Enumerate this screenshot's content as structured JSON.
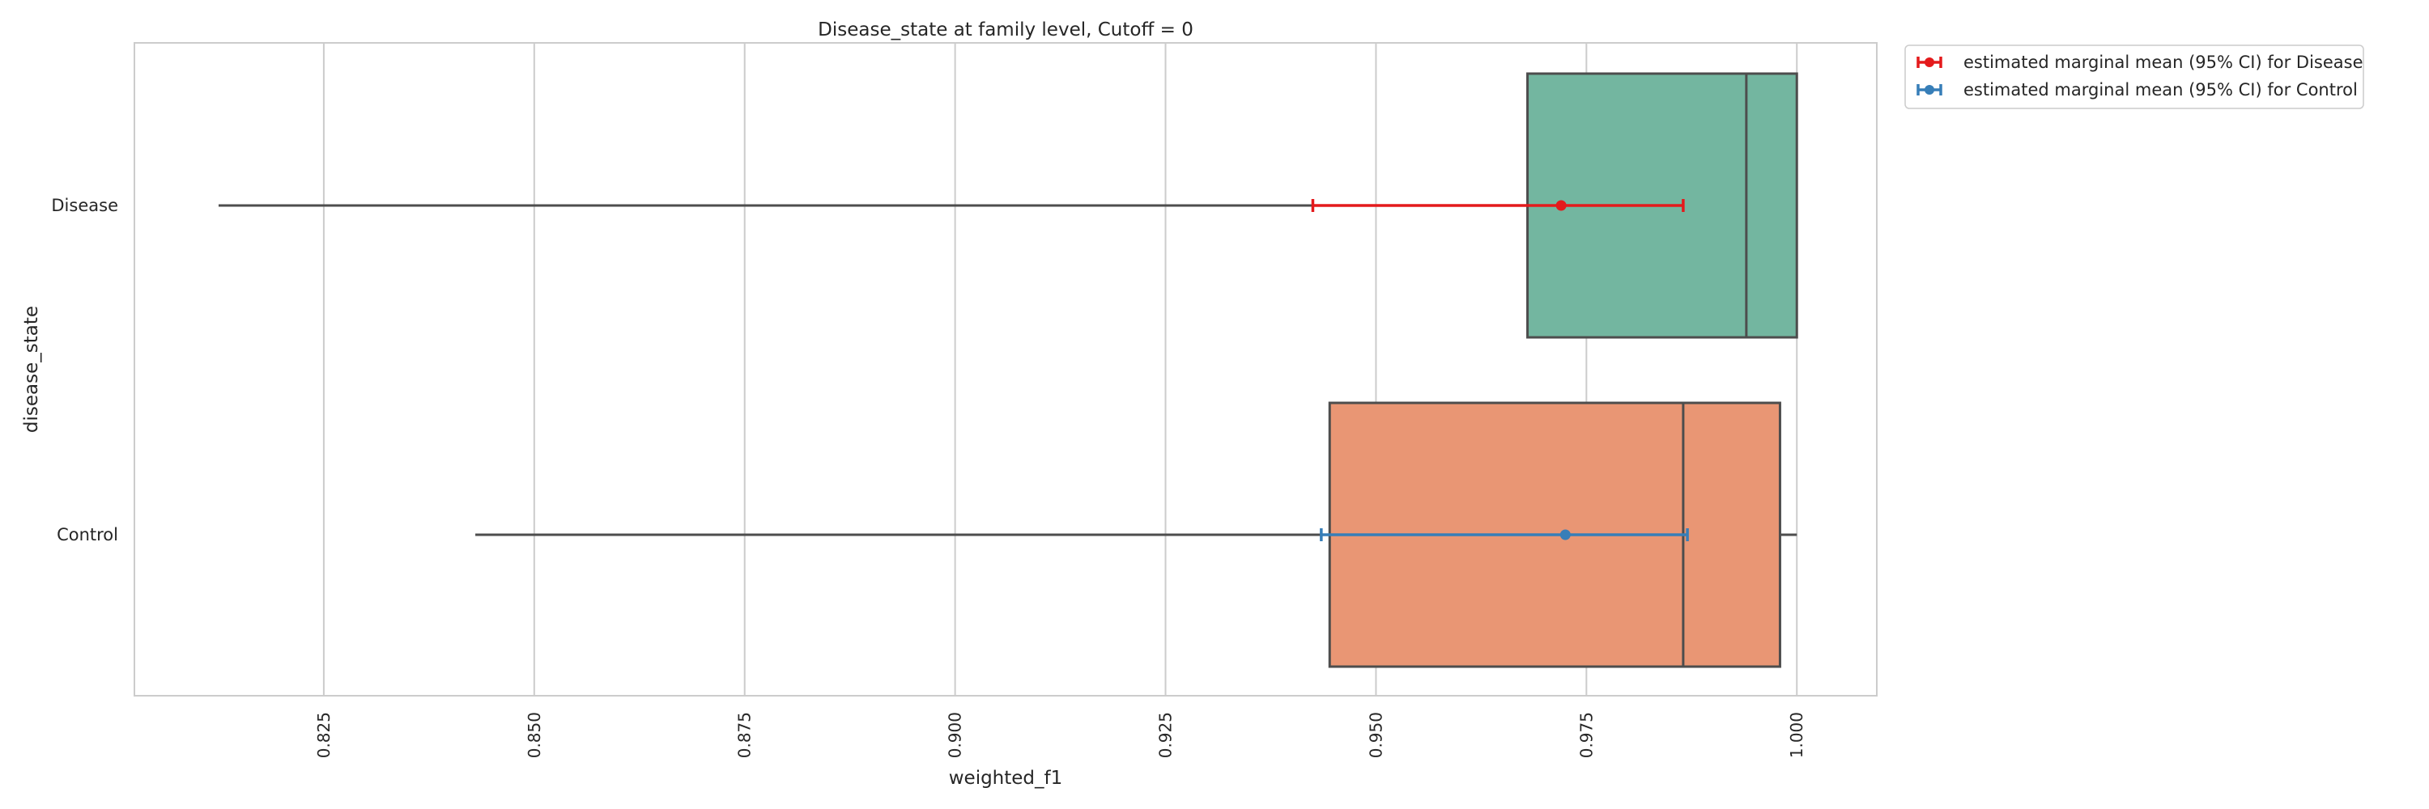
{
  "chart_data": {
    "type": "box",
    "title": "Disease_state at family level, Cutoff = 0",
    "xlabel": "weighted_f1",
    "ylabel": "disease_state",
    "xlim": [
      0.8025,
      1.0095
    ],
    "xticks": [
      0.825,
      0.85,
      0.875,
      0.9,
      0.925,
      0.95,
      0.975,
      1.0
    ],
    "xtick_labels": [
      "0.825",
      "0.850",
      "0.875",
      "0.900",
      "0.925",
      "0.950",
      "0.975",
      "1.000"
    ],
    "grid": "x",
    "orientation": "horizontal",
    "categories": [
      "Disease",
      "Control"
    ],
    "boxes": [
      {
        "category": "Disease",
        "whisker_low": 0.8125,
        "q1": 0.968,
        "median": 0.994,
        "q3": 1.0,
        "whisker_high": 1.0,
        "color": "#73b6a0"
      },
      {
        "category": "Control",
        "whisker_low": 0.843,
        "q1": 0.9445,
        "median": 0.9865,
        "q3": 0.998,
        "whisker_high": 1.0,
        "color": "#e99674"
      }
    ],
    "series": [
      {
        "name": "estimated marginal mean (95% CI) for Disease",
        "category": "Disease",
        "mean": 0.972,
        "ci_low": 0.9425,
        "ci_high": 0.9865,
        "color": "#e41a1c"
      },
      {
        "name": "estimated marginal mean (95% CI) for Control",
        "category": "Control",
        "mean": 0.9725,
        "ci_low": 0.9435,
        "ci_high": 0.987,
        "color": "#377eb8"
      }
    ],
    "legend_position": "outside-top-right"
  }
}
